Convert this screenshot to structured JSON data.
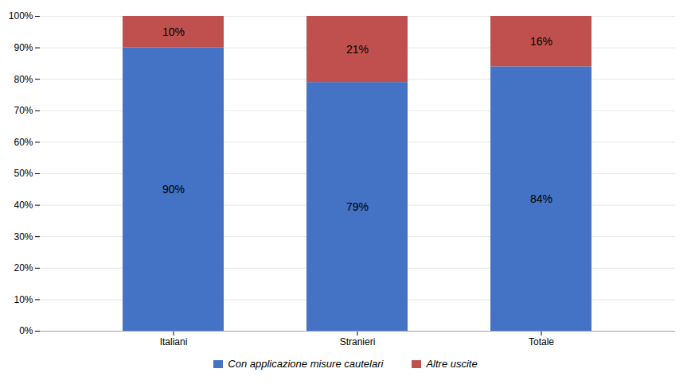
{
  "chart_data": {
    "type": "bar",
    "stacked": true,
    "categories": [
      "Italiani",
      "Stranieri",
      "Totale"
    ],
    "series": [
      {
        "name": "Con applicazione misure cautelari",
        "color": "#4472C4",
        "values": [
          90,
          79,
          84
        ],
        "value_labels": [
          "90%",
          "79%",
          "84%"
        ]
      },
      {
        "name": "Altre uscite",
        "color": "#C0504D",
        "values": [
          10,
          21,
          16
        ],
        "value_labels": [
          "10%",
          "21%",
          "16%"
        ]
      }
    ],
    "ylim": [
      0,
      100
    ],
    "yticks": [
      {
        "value": 0,
        "label": "0%"
      },
      {
        "value": 10,
        "label": "10%"
      },
      {
        "value": 20,
        "label": "20%"
      },
      {
        "value": 30,
        "label": "30%"
      },
      {
        "value": 40,
        "label": "40%"
      },
      {
        "value": 50,
        "label": "50%"
      },
      {
        "value": 60,
        "label": "60%"
      },
      {
        "value": 70,
        "label": "70%"
      },
      {
        "value": 80,
        "label": "80%"
      },
      {
        "value": 90,
        "label": "90%"
      },
      {
        "value": 100,
        "label": "100%"
      }
    ],
    "grid": true,
    "legend": "bottom",
    "data_labels": true
  }
}
